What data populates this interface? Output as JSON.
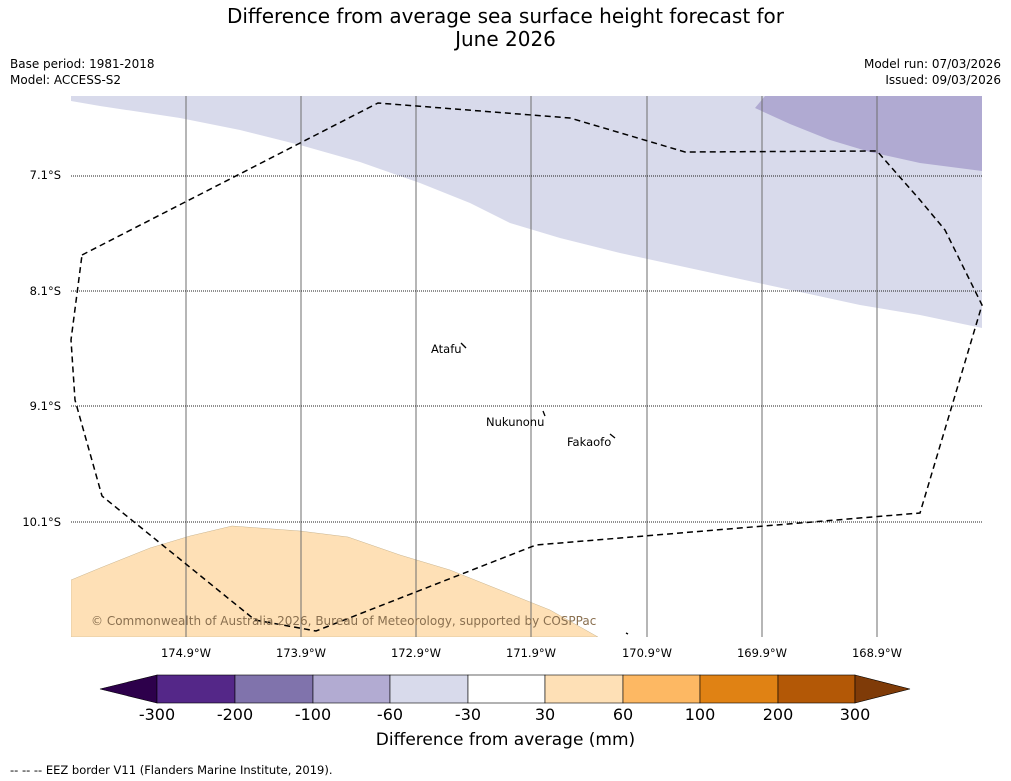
{
  "title_line1": "Difference from average sea surface height forecast for",
  "title_line2": "June 2026",
  "meta_left": [
    "Base period: 1981-2018",
    "Model: ACCESS-S2"
  ],
  "meta_right": [
    "Model run: 07/03/2026",
    "Issued: 09/03/2026"
  ],
  "latitudes": [
    "7.1°S",
    "8.1°S",
    "9.1°S",
    "10.1°S"
  ],
  "longitudes": [
    "174.9°W",
    "173.9°W",
    "172.9°W",
    "171.9°W",
    "170.9°W",
    "169.9°W",
    "168.9°W"
  ],
  "places": [
    "Atafu",
    "Nukunonu",
    "Fakaofo"
  ],
  "copyright": "© Commonwealth of Australia 2026, Bureau of Meteorology, supported by COSPPac",
  "colorbar": {
    "ticks": [
      "-300",
      "-200",
      "-100",
      "-60",
      "-30",
      "30",
      "60",
      "100",
      "200",
      "300"
    ],
    "colors": [
      "#2d004b",
      "#542788",
      "#8073ac",
      "#b2abd2",
      "#d8daeb",
      "#ffffff",
      "#fee0b6",
      "#fdb863",
      "#e08214",
      "#b35806",
      "#7f3b08"
    ],
    "label": "Difference from average (mm)"
  },
  "footer": "--  --  -- EEZ border V11 (Flanders Marine Institute, 2019)."
}
